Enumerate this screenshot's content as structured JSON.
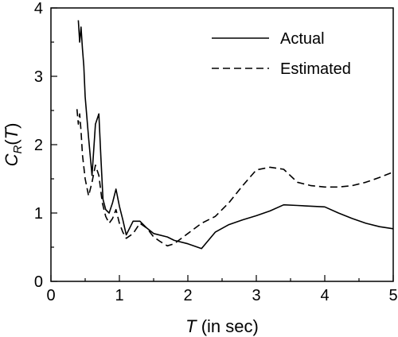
{
  "chart_data": {
    "type": "line",
    "xlabel": {
      "var": "T",
      "rest": " (in sec)"
    },
    "ylabel": {
      "main": "C",
      "sub": "R",
      "open": "(",
      "var": "T",
      "close": ")"
    },
    "xlim": [
      0,
      5
    ],
    "ylim": [
      0,
      4
    ],
    "xticks": [
      "0",
      "1",
      "2",
      "3",
      "4",
      "5"
    ],
    "yticks": [
      "0",
      "1",
      "2",
      "3",
      "4"
    ],
    "grid": false,
    "legend_position": "top-right",
    "series": [
      {
        "name": "Actual",
        "style": "solid",
        "x": [
          0.4,
          0.42,
          0.44,
          0.46,
          0.48,
          0.5,
          0.55,
          0.6,
          0.65,
          0.7,
          0.73,
          0.76,
          0.8,
          0.85,
          0.9,
          0.95,
          1.0,
          1.05,
          1.1,
          1.2,
          1.3,
          1.4,
          1.5,
          1.7,
          1.8,
          2.0,
          2.2,
          2.4,
          2.6,
          2.8,
          3.0,
          3.2,
          3.4,
          3.6,
          3.8,
          4.0,
          4.2,
          4.4,
          4.6,
          4.8,
          5.0
        ],
        "values": [
          3.82,
          3.5,
          3.72,
          3.4,
          3.15,
          2.7,
          2.1,
          1.55,
          2.3,
          2.45,
          1.8,
          1.2,
          1.05,
          1.0,
          1.15,
          1.35,
          1.1,
          0.9,
          0.68,
          0.88,
          0.88,
          0.78,
          0.7,
          0.65,
          0.6,
          0.55,
          0.48,
          0.72,
          0.83,
          0.9,
          0.96,
          1.03,
          1.12,
          1.11,
          1.1,
          1.09,
          1.0,
          0.92,
          0.85,
          0.8,
          0.77
        ]
      },
      {
        "name": "Estimated",
        "style": "dashed",
        "x": [
          0.38,
          0.4,
          0.42,
          0.44,
          0.46,
          0.5,
          0.55,
          0.6,
          0.65,
          0.7,
          0.75,
          0.8,
          0.85,
          0.9,
          0.95,
          1.0,
          1.05,
          1.1,
          1.2,
          1.3,
          1.4,
          1.5,
          1.6,
          1.7,
          1.8,
          2.0,
          2.2,
          2.4,
          2.6,
          2.8,
          3.0,
          3.2,
          3.4,
          3.6,
          3.8,
          4.0,
          4.2,
          4.4,
          4.6,
          4.8,
          5.0
        ],
        "values": [
          2.52,
          2.3,
          2.45,
          2.2,
          1.85,
          1.5,
          1.25,
          1.45,
          1.7,
          1.55,
          1.15,
          0.95,
          0.85,
          0.92,
          1.05,
          0.85,
          0.72,
          0.63,
          0.7,
          0.85,
          0.78,
          0.65,
          0.58,
          0.52,
          0.55,
          0.7,
          0.85,
          0.95,
          1.15,
          1.4,
          1.63,
          1.67,
          1.64,
          1.45,
          1.4,
          1.38,
          1.38,
          1.4,
          1.45,
          1.52,
          1.6
        ]
      }
    ]
  }
}
